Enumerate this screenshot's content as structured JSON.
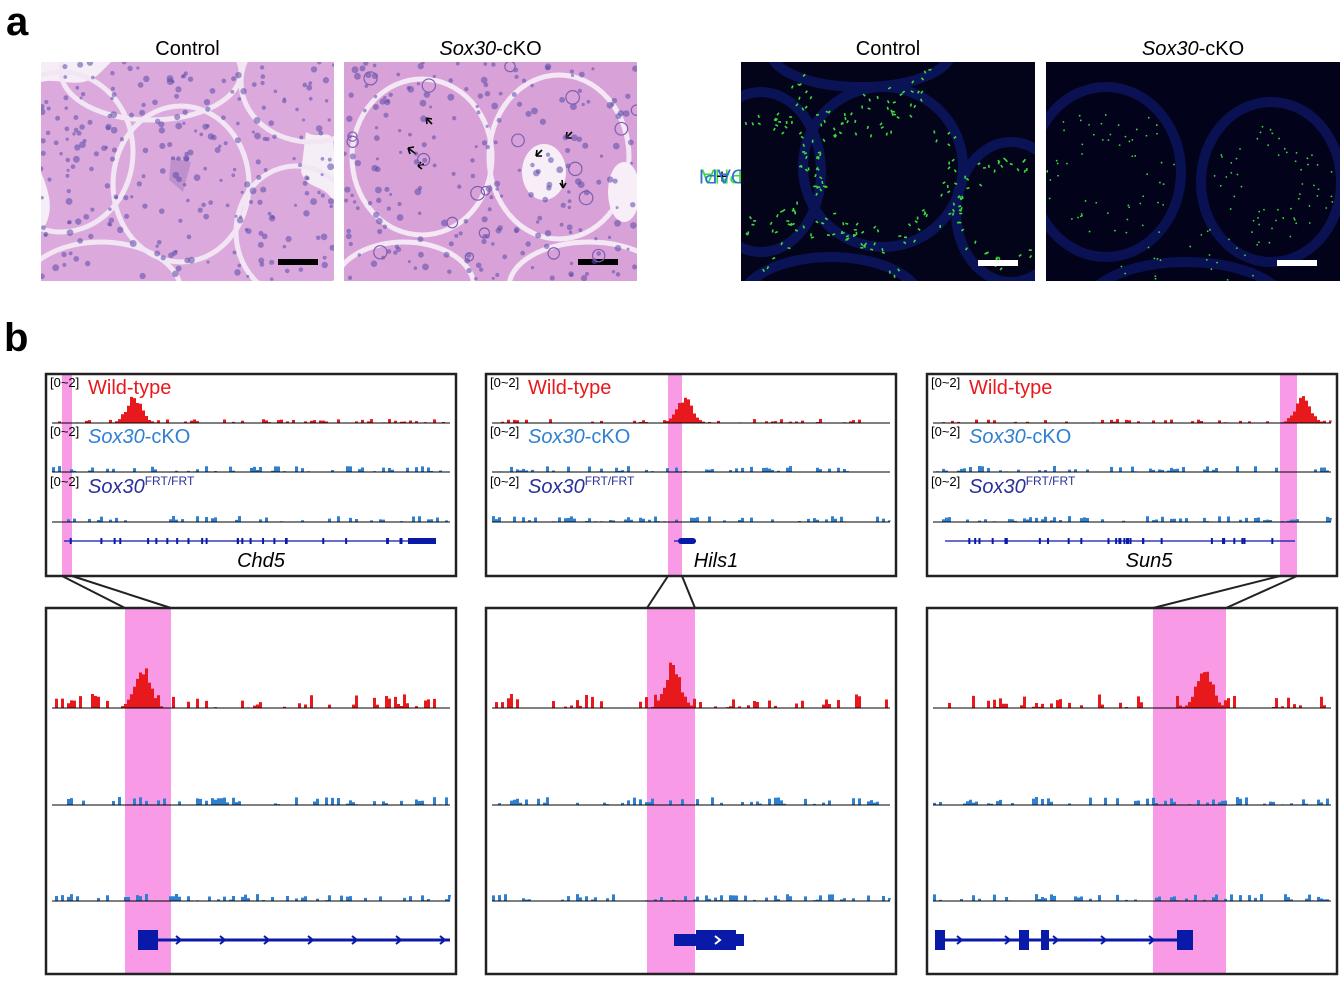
{
  "panel_a": {
    "letter": "a",
    "he": {
      "control_title": "Control",
      "cko_title_gene": "Sox30",
      "cko_title_suffix": "-cKO"
    },
    "if": {
      "control_title": "Control",
      "cko_title_gene": "Sox30",
      "cko_title_suffix": "-cKO",
      "stain_pna": "PNA",
      "stain_plus": " + ",
      "stain_dapi": "DAPI"
    }
  },
  "panel_b": {
    "letter": "b",
    "range_label": "[0~2]",
    "tracks": {
      "wt": "Wild-type",
      "cko_gene": "Sox30",
      "cko_suffix": "-cKO",
      "frt_gene": "Sox30",
      "frt_sup": "FRT/FRT"
    },
    "genes": [
      "Chd5",
      "Hils1",
      "Sun5"
    ]
  },
  "colors": {
    "wt": "#e8191c",
    "cko": "#2f80d1",
    "frt": "#2a2f9a",
    "highlight": "#f89ae6",
    "gene_model": "#0a1aa8",
    "he_bg": "#d9a6db",
    "if_bg": "#03041a",
    "pna": "#3cdc3c",
    "dapi": "#1e2fa0"
  }
}
